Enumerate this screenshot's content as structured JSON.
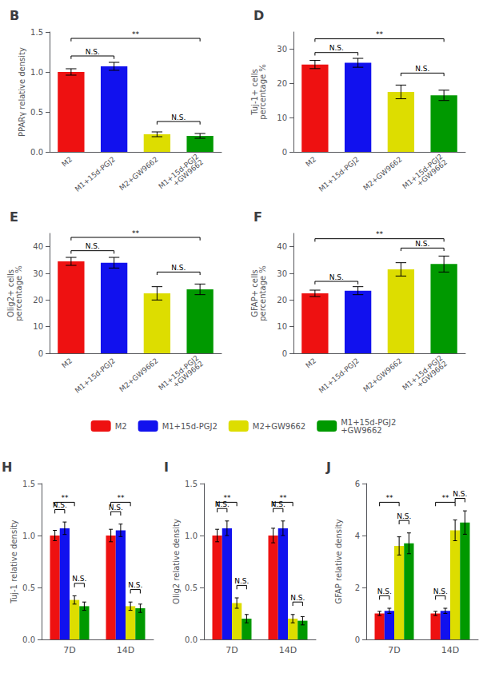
{
  "chart_data": [
    {
      "type": "bar",
      "title": "B",
      "ylabel": "PPARγ relative density",
      "categories": [
        "M2",
        "M1+15d-PGJ2",
        "M2+GW9662",
        "M1+15d-PGJ2\n+GW9662"
      ],
      "values": [
        1.0,
        1.07,
        0.22,
        0.2
      ],
      "errors": [
        0.04,
        0.05,
        0.03,
        0.03
      ],
      "colors": [
        "#EE1111",
        "#1111EE",
        "#DDDD00",
        "#009900"
      ],
      "ylim": [
        0,
        1.5
      ],
      "yticks": [
        {
          "value": 0,
          "label": "0.0"
        },
        0.5,
        {
          "value": 1,
          "label": "1.0"
        },
        1.5
      ],
      "sig_lines": [
        {
          "x1": 0,
          "x2": 1,
          "y": 1.2,
          "label": "N.S."
        },
        {
          "x1": 0,
          "x2": 3,
          "y": 1.42,
          "label": "**"
        },
        {
          "x1": 2,
          "x2": 3,
          "y": 0.38,
          "label": "N.S."
        }
      ]
    },
    {
      "type": "bar",
      "title": "D",
      "ylabel": "Tuj-1+ cells\npercentage %",
      "categories": [
        "M2",
        "M1+15d-PGJ2",
        "M2+GW9662",
        "M1+15d-PGJ2\n+GW9662"
      ],
      "values": [
        25.5,
        26.0,
        17.5,
        16.5
      ],
      "errors": [
        1.2,
        1.3,
        2.0,
        1.5
      ],
      "colors": [
        "#EE1111",
        "#1111EE",
        "#DDDD00",
        "#009900"
      ],
      "ylim": [
        0,
        35
      ],
      "yticks": [
        0,
        10,
        20,
        30
      ],
      "sig_lines": [
        {
          "x1": 0,
          "x2": 1,
          "y": 29.0,
          "label": "N.S."
        },
        {
          "x1": 0,
          "x2": 3,
          "y": 33.0,
          "label": "**"
        },
        {
          "x1": 2,
          "x2": 3,
          "y": 23.0,
          "label": "N.S."
        }
      ]
    },
    {
      "type": "bar",
      "title": "E",
      "ylabel": "Olig2+ cells\npercentage %",
      "categories": [
        "M2",
        "M1+15d-PGJ2",
        "M2+GW9662",
        "M1+15d-PGJ2\n+GW9662"
      ],
      "values": [
        34.5,
        34.0,
        22.5,
        24.0
      ],
      "errors": [
        1.5,
        2.0,
        2.5,
        2.0
      ],
      "colors": [
        "#EE1111",
        "#1111EE",
        "#DDDD00",
        "#009900"
      ],
      "ylim": [
        0,
        45
      ],
      "yticks": [
        0,
        10,
        20,
        30,
        40
      ],
      "sig_lines": [
        {
          "x1": 0,
          "x2": 1,
          "y": 38.5,
          "label": "N.S."
        },
        {
          "x1": 0,
          "x2": 3,
          "y": 43.5,
          "label": "**"
        },
        {
          "x1": 2,
          "x2": 3,
          "y": 30.5,
          "label": "N.S."
        }
      ]
    },
    {
      "type": "bar",
      "title": "F",
      "ylabel": "GFAP+ cells\npercentage %",
      "categories": [
        "M2",
        "M1+15d-PGJ2",
        "M2+GW9662",
        "M1+15d-PGJ2\n+GW9662"
      ],
      "values": [
        22.5,
        23.5,
        31.5,
        33.5
      ],
      "errors": [
        1.2,
        1.5,
        2.5,
        3.0
      ],
      "colors": [
        "#EE1111",
        "#1111EE",
        "#DDDD00",
        "#009900"
      ],
      "ylim": [
        0,
        45
      ],
      "yticks": [
        0,
        10,
        20,
        30,
        40
      ],
      "sig_lines": [
        {
          "x1": 0,
          "x2": 1,
          "y": 27.0,
          "label": "N.S."
        },
        {
          "x1": 0,
          "x2": 3,
          "y": 43.0,
          "label": "**"
        },
        {
          "x1": 2,
          "x2": 3,
          "y": 39.5,
          "label": "N.S."
        }
      ]
    },
    {
      "type": "bar",
      "title": "H",
      "ylabel": "Tuj-1 relative density",
      "categories": [
        "7D",
        "14D"
      ],
      "legend": "top",
      "series": [
        {
          "name": "M2",
          "color": "#EE1111",
          "values": [
            1.0,
            1.0
          ],
          "errors": [
            0.05,
            0.06
          ]
        },
        {
          "name": "M1+15d-PGJ2",
          "color": "#1111EE",
          "values": [
            1.07,
            1.05
          ],
          "errors": [
            0.06,
            0.06
          ]
        },
        {
          "name": "M2+GW9662",
          "color": "#DDDD00",
          "values": [
            0.38,
            0.32
          ],
          "errors": [
            0.04,
            0.04
          ]
        },
        {
          "name": "M1+15d-PGJ2\n+GW9662",
          "color": "#009900",
          "values": [
            0.32,
            0.3
          ],
          "errors": [
            0.04,
            0.04
          ]
        }
      ],
      "ylim": [
        0,
        1.5
      ],
      "yticks": [
        {
          "value": 0,
          "label": "0.0"
        },
        0.5,
        {
          "value": 1,
          "label": "1.0"
        },
        1.5
      ],
      "sig_lines": [
        {
          "category": "7D",
          "x1": 0,
          "x2": 2,
          "y": 1.32,
          "label": "**"
        },
        {
          "category": "7D",
          "x1": 0,
          "x2": 1,
          "y": 1.25,
          "label": "N.S."
        },
        {
          "category": "7D",
          "x1": 2,
          "x2": 3,
          "y": 0.54,
          "label": "N.S."
        },
        {
          "category": "14D",
          "x1": 0,
          "x2": 2,
          "y": 1.32,
          "label": "**"
        },
        {
          "category": "14D",
          "x1": 0,
          "x2": 1,
          "y": 1.23,
          "label": "N.S."
        },
        {
          "category": "14D",
          "x1": 2,
          "x2": 3,
          "y": 0.48,
          "label": "N.S."
        }
      ]
    },
    {
      "type": "bar",
      "title": "I",
      "ylabel": "Olig2 relative density",
      "categories": [
        "7D",
        "14D"
      ],
      "series": [
        {
          "name": "M2",
          "color": "#EE1111",
          "values": [
            1.0,
            1.0
          ],
          "errors": [
            0.06,
            0.07
          ]
        },
        {
          "name": "M1+15d-PGJ2",
          "color": "#1111EE",
          "values": [
            1.07,
            1.07
          ],
          "errors": [
            0.07,
            0.07
          ]
        },
        {
          "name": "M2+GW9662",
          "color": "#DDDD00",
          "values": [
            0.35,
            0.2
          ],
          "errors": [
            0.05,
            0.04
          ]
        },
        {
          "name": "M1+15d-PGJ2\n+GW9662",
          "color": "#009900",
          "values": [
            0.2,
            0.18
          ],
          "errors": [
            0.04,
            0.04
          ]
        }
      ],
      "ylim": [
        0,
        1.5
      ],
      "yticks": [
        {
          "value": 0,
          "label": "0.0"
        },
        0.5,
        {
          "value": 1,
          "label": "1.0"
        },
        1.5
      ],
      "sig_lines": [
        {
          "category": "7D",
          "x1": 0,
          "x2": 2,
          "y": 1.32,
          "label": "**"
        },
        {
          "category": "7D",
          "x1": 0,
          "x2": 1,
          "y": 1.26,
          "label": "N.S."
        },
        {
          "category": "7D",
          "x1": 2,
          "x2": 3,
          "y": 0.52,
          "label": "N.S."
        },
        {
          "category": "14D",
          "x1": 0,
          "x2": 2,
          "y": 1.32,
          "label": "**"
        },
        {
          "category": "14D",
          "x1": 0,
          "x2": 1,
          "y": 1.26,
          "label": "N.S."
        },
        {
          "category": "14D",
          "x1": 2,
          "x2": 3,
          "y": 0.36,
          "label": "N.S."
        }
      ]
    },
    {
      "type": "bar",
      "title": "J",
      "ylabel": "GFAP relative density",
      "categories": [
        "7D",
        "14D"
      ],
      "series": [
        {
          "name": "M2",
          "color": "#EE1111",
          "values": [
            1.0,
            1.0
          ],
          "errors": [
            0.08,
            0.08
          ]
        },
        {
          "name": "M1+15d-PGJ2",
          "color": "#1111EE",
          "values": [
            1.1,
            1.1
          ],
          "errors": [
            0.1,
            0.1
          ]
        },
        {
          "name": "M2+GW9662",
          "color": "#DDDD00",
          "values": [
            3.6,
            4.2
          ],
          "errors": [
            0.35,
            0.4
          ]
        },
        {
          "name": "M1+15d-PGJ2\n+GW9662",
          "color": "#009900",
          "values": [
            3.7,
            4.5
          ],
          "errors": [
            0.4,
            0.45
          ]
        }
      ],
      "ylim": [
        0,
        6
      ],
      "yticks": [
        0,
        2,
        4,
        6
      ],
      "sig_lines": [
        {
          "category": "7D",
          "x1": 0,
          "x2": 2,
          "y": 5.28,
          "label": "**"
        },
        {
          "category": "7D",
          "x1": 0,
          "x2": 1,
          "y": 1.68,
          "label": "N.S."
        },
        {
          "category": "7D",
          "x1": 2,
          "x2": 3,
          "y": 4.58,
          "label": "N.S."
        },
        {
          "category": "14D",
          "x1": 0,
          "x2": 2,
          "y": 5.28,
          "label": "**"
        },
        {
          "category": "14D",
          "x1": 0,
          "x2": 1,
          "y": 1.68,
          "label": "N.S."
        },
        {
          "category": "14D",
          "x1": 2,
          "x2": 3,
          "y": 5.43,
          "label": "N.S."
        }
      ]
    }
  ]
}
